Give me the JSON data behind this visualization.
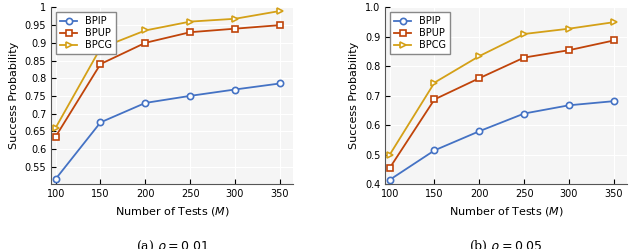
{
  "x": [
    100,
    150,
    200,
    250,
    300,
    350
  ],
  "plot1": {
    "BPIP": [
      0.515,
      0.675,
      0.73,
      0.75,
      0.768,
      0.785
    ],
    "BPUP": [
      0.635,
      0.84,
      0.9,
      0.93,
      0.94,
      0.95
    ],
    "BPCG": [
      0.66,
      0.885,
      0.935,
      0.96,
      0.968,
      0.99
    ]
  },
  "plot2": {
    "BPIP": [
      0.415,
      0.515,
      0.58,
      0.64,
      0.668,
      0.682
    ],
    "BPUP": [
      0.455,
      0.688,
      0.76,
      0.83,
      0.855,
      0.888
    ],
    "BPCG": [
      0.5,
      0.745,
      0.835,
      0.91,
      0.928,
      0.95
    ]
  },
  "ylim1": [
    0.5,
    1.0
  ],
  "ylim2": [
    0.4,
    1.0
  ],
  "yticks1": [
    0.55,
    0.6,
    0.65,
    0.7,
    0.75,
    0.8,
    0.85,
    0.9,
    0.95,
    1.0
  ],
  "yticks2": [
    0.4,
    0.5,
    0.6,
    0.7,
    0.8,
    0.9,
    1.0
  ],
  "xlabel": "Number of Tests $(M)$",
  "ylabel": "Success Probability",
  "title1": "(a) $\\rho = 0.01$",
  "title2": "(b) $\\rho = 0.05$",
  "colors": {
    "BPIP": "#4472c4",
    "BPUP": "#c0440a",
    "BPCG": "#d4a017"
  },
  "markers": {
    "BPIP": "o",
    "BPUP": "s",
    "BPCG": ">"
  },
  "bg_color": "#f5f5f5"
}
